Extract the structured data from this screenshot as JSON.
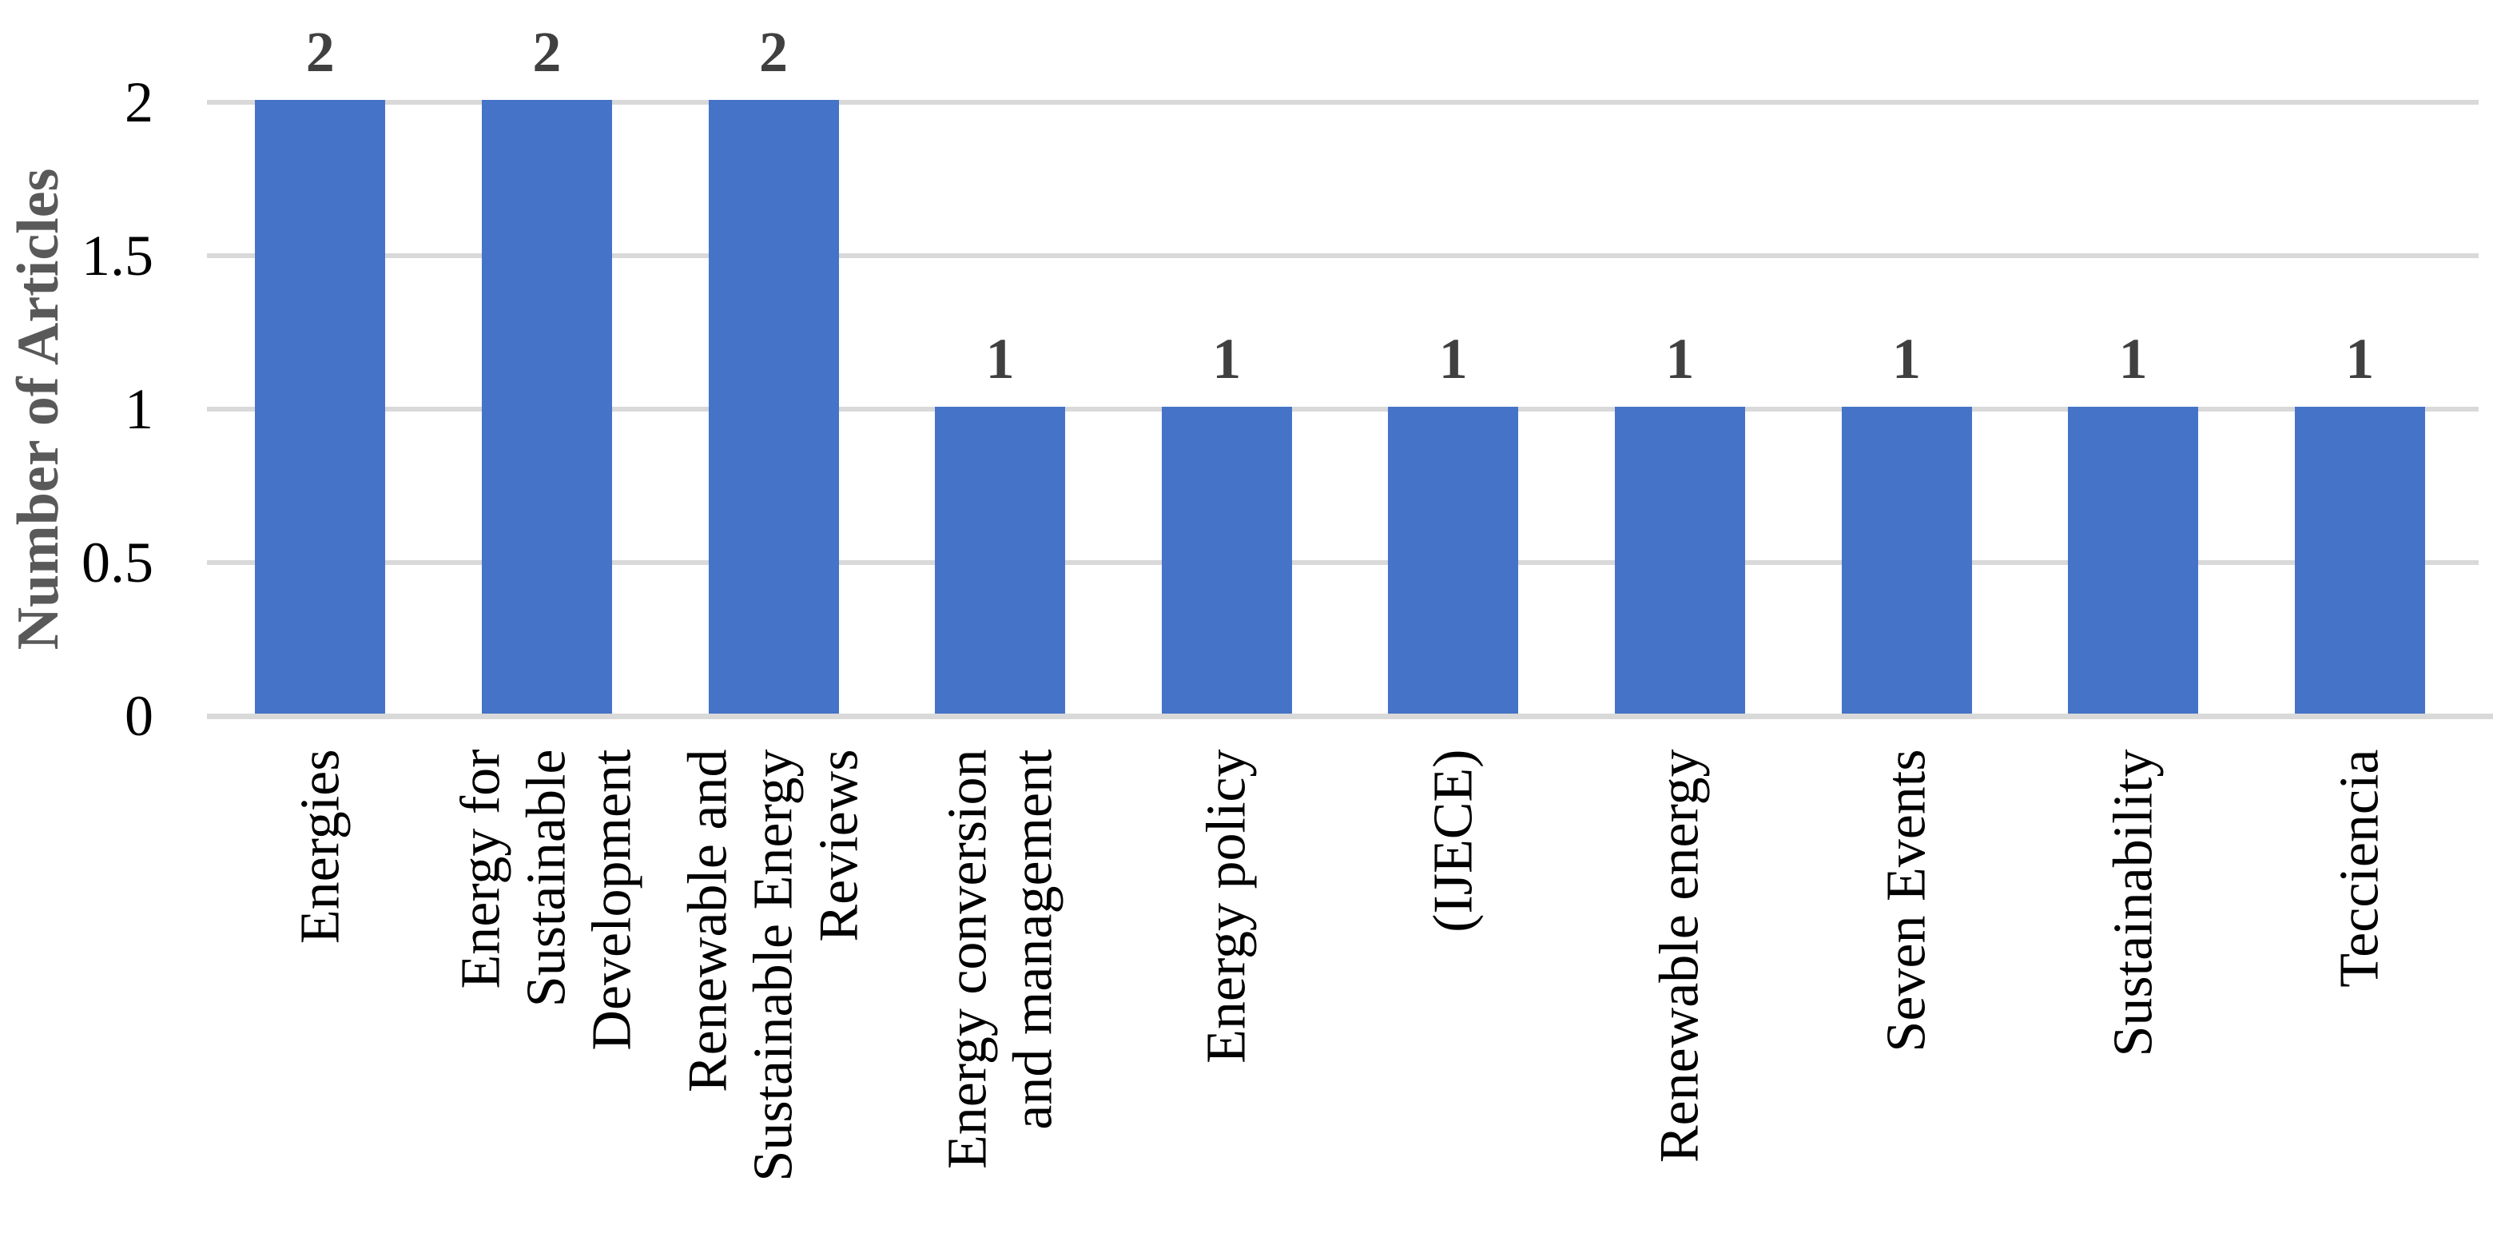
{
  "chart_data": {
    "type": "bar",
    "title": "",
    "xlabel": "",
    "ylabel": "Number of Articles",
    "categories": [
      "Energies",
      "Energy for\nSustainable\nDevelopment",
      "Renewable and\nSustainable Energy\nReviews",
      "Energy conversion\nand management",
      "Energy policy",
      "(IJECE)",
      "Renewable energy",
      "Seven Events",
      "Sustainability",
      "Tecciencia"
    ],
    "values": [
      2,
      2,
      2,
      1,
      1,
      1,
      1,
      1,
      1,
      1
    ],
    "data_labels": [
      "2",
      "2",
      "2",
      "1",
      "1",
      "1",
      "1",
      "1",
      "1",
      "1"
    ],
    "ylim": [
      0,
      2
    ],
    "yticks": [
      0,
      0.5,
      1,
      1.5,
      2
    ],
    "ytick_labels": [
      "0",
      "0.5",
      "1",
      "1.5",
      "2"
    ],
    "grid": true,
    "legend": "none",
    "colors": {
      "bar": "#4573C7",
      "gridline": "#D9D9D9",
      "axis_line": "#D9D9D9",
      "data_label": "#404040",
      "tick_label": "#000000",
      "y_axis_title": "#595959"
    }
  }
}
